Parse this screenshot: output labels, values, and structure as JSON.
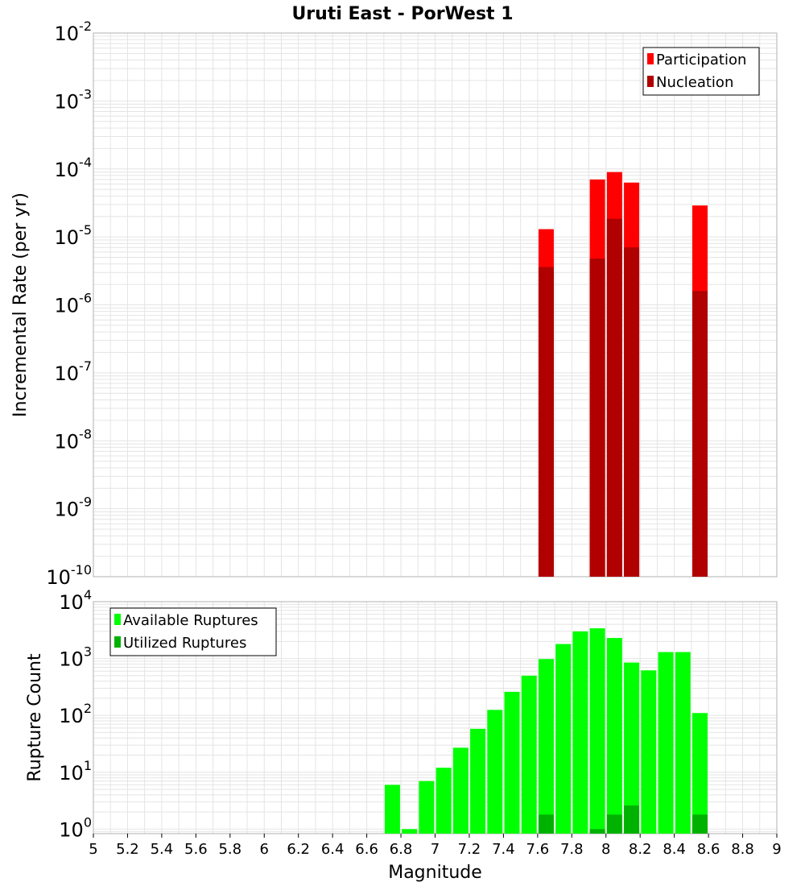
{
  "title": "Uruti East - PorWest 1",
  "colors": {
    "participation": "#ff0000",
    "nucleation": "#b00000",
    "available": "#00ff00",
    "utilized": "#00b200",
    "grid": "#e4e4e4",
    "frame": "#b0b0b0"
  },
  "chart_data": [
    {
      "type": "bar",
      "scale": "log",
      "ylabel": "Incremental Rate (per yr)",
      "ylim_exp": [
        -10,
        -2
      ],
      "y_ticks": [
        {
          "base": "10",
          "exp": "-2"
        },
        {
          "base": "10",
          "exp": "-3"
        },
        {
          "base": "10",
          "exp": "-4"
        },
        {
          "base": "10",
          "exp": "-5"
        },
        {
          "base": "10",
          "exp": "-6"
        },
        {
          "base": "10",
          "exp": "-7"
        },
        {
          "base": "10",
          "exp": "-8"
        },
        {
          "base": "10",
          "exp": "-9"
        },
        {
          "base": "10",
          "exp": "-10"
        }
      ],
      "legend_position": "top-right",
      "series": [
        {
          "name": "Participation",
          "color": "#ff0000",
          "points": [
            {
              "x": 7.65,
              "y": 1.3e-05
            },
            {
              "x": 7.95,
              "y": 7e-05
            },
            {
              "x": 8.05,
              "y": 9e-05
            },
            {
              "x": 8.15,
              "y": 6.3e-05
            },
            {
              "x": 8.55,
              "y": 2.9e-05
            }
          ]
        },
        {
          "name": "Nucleation",
          "color": "#b00000",
          "points": [
            {
              "x": 7.65,
              "y": 3.6e-06
            },
            {
              "x": 7.95,
              "y": 4.8e-06
            },
            {
              "x": 8.05,
              "y": 1.85e-05
            },
            {
              "x": 8.15,
              "y": 7e-06
            },
            {
              "x": 8.55,
              "y": 1.6e-06
            }
          ]
        }
      ]
    },
    {
      "type": "bar",
      "scale": "log",
      "ylabel": "Rupture Count",
      "xlabel": "Magnitude",
      "ylim_exp": [
        -0.08,
        4
      ],
      "y_ticks": [
        {
          "base": "10",
          "exp": "4"
        },
        {
          "base": "10",
          "exp": "3"
        },
        {
          "base": "10",
          "exp": "2"
        },
        {
          "base": "10",
          "exp": "1"
        },
        {
          "base": "10",
          "exp": "0"
        }
      ],
      "xlim": [
        5,
        9
      ],
      "x_ticks": [
        "5",
        "5.2",
        "5.4",
        "5.6",
        "5.8",
        "6",
        "6.2",
        "6.4",
        "6.6",
        "6.8",
        "7",
        "7.2",
        "7.4",
        "7.6",
        "7.8",
        "8",
        "8.2",
        "8.4",
        "8.6",
        "8.8",
        "9"
      ],
      "legend_position": "top-left",
      "series": [
        {
          "name": "Available Ruptures",
          "color": "#00ff00",
          "points": [
            {
              "x": 6.75,
              "y": 6
            },
            {
              "x": 6.85,
              "y": 1
            },
            {
              "x": 6.95,
              "y": 7
            },
            {
              "x": 7.05,
              "y": 12
            },
            {
              "x": 7.15,
              "y": 27
            },
            {
              "x": 7.25,
              "y": 58
            },
            {
              "x": 7.35,
              "y": 125
            },
            {
              "x": 7.45,
              "y": 260
            },
            {
              "x": 7.55,
              "y": 500
            },
            {
              "x": 7.65,
              "y": 980
            },
            {
              "x": 7.75,
              "y": 1800
            },
            {
              "x": 7.85,
              "y": 3000
            },
            {
              "x": 7.95,
              "y": 3400
            },
            {
              "x": 8.05,
              "y": 2300
            },
            {
              "x": 8.15,
              "y": 850
            },
            {
              "x": 8.25,
              "y": 620
            },
            {
              "x": 8.35,
              "y": 1300
            },
            {
              "x": 8.45,
              "y": 1300
            },
            {
              "x": 8.55,
              "y": 110
            }
          ]
        },
        {
          "name": "Utilized Ruptures",
          "color": "#00b200",
          "points": [
            {
              "x": 7.65,
              "y": 1.8
            },
            {
              "x": 7.95,
              "y": 1
            },
            {
              "x": 8.05,
              "y": 1.8
            },
            {
              "x": 8.15,
              "y": 2.6
            },
            {
              "x": 8.55,
              "y": 1.8
            }
          ]
        }
      ]
    }
  ]
}
